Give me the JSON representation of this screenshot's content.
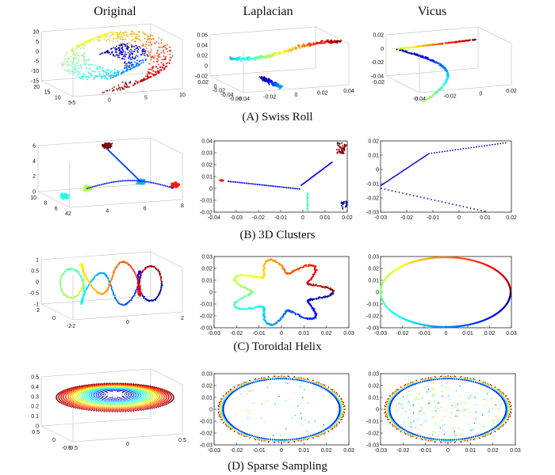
{
  "columns": [
    "Original",
    "Laplacian",
    "Vicus"
  ],
  "rows": [
    {
      "caption": "(A) Swiss Roll",
      "original": {
        "z_ticks": [
          "10",
          "5",
          "0",
          "-5",
          "-10",
          "-15"
        ],
        "x_ticks": [
          "-5",
          "0",
          "5",
          "10"
        ],
        "y_ticks": [
          "20",
          "15",
          "10",
          "5"
        ]
      },
      "laplacian": {
        "z_ticks": [
          "0.06",
          "0.04",
          "0.02",
          "0",
          "-0.02"
        ],
        "x_ticks": [
          "-0.04",
          "-0.02",
          "0",
          "0.02",
          "0.04"
        ],
        "y_ticks": [
          "0.02",
          "0",
          "-0.02",
          "-0.04",
          "-0.06"
        ]
      },
      "vicus": {
        "z_ticks": [
          "0.02",
          "0",
          "-0.02",
          "-0.04"
        ],
        "x_ticks": [
          "-0.04",
          "-0.02",
          "0",
          "0.02"
        ],
        "y_ticks": [
          "-0.02",
          "0"
        ]
      }
    },
    {
      "caption": "(B) 3D Clusters",
      "original": {
        "z_ticks": [
          "6",
          "4",
          "2",
          "0"
        ],
        "x_ticks": [
          "2",
          "4",
          "6",
          "8"
        ],
        "y_ticks": [
          "10",
          "8",
          "6",
          "4"
        ]
      },
      "laplacian": {
        "x_ticks": [
          "-0.04",
          "-0.03",
          "-0.02",
          "-0.01",
          "0",
          "0.01",
          "0.02"
        ],
        "y_ticks": [
          "0.04",
          "0.03",
          "0.02",
          "0.01",
          "0",
          "-0.01",
          "-0.02"
        ]
      },
      "vicus": {
        "x_ticks": [
          "-0.03",
          "-0.02",
          "-0.01",
          "0",
          "0.01",
          "0.02"
        ],
        "y_ticks": [
          "0.02",
          "0.01",
          "0",
          "-0.01",
          "-0.02",
          "-0.03"
        ]
      }
    },
    {
      "caption": "(C) Toroidal Helix",
      "original": {
        "z_ticks": [
          "1",
          "0.5",
          "0",
          "-0.5",
          "-1"
        ],
        "x_ticks": [
          "-2",
          "0",
          "2"
        ],
        "y_ticks": [
          "2",
          "0",
          "-2"
        ]
      },
      "laplacian": {
        "x_ticks": [
          "-0.03",
          "-0.02",
          "-0.01",
          "0",
          "0.01",
          "0.02",
          "0.03"
        ],
        "y_ticks": [
          "0.03",
          "0.02",
          "0.01",
          "0",
          "-0.01",
          "-0.02",
          "-0.03"
        ]
      },
      "vicus": {
        "x_ticks": [
          "-0.03",
          "-0.02",
          "-0.01",
          "0",
          "0.01",
          "0.02",
          "0.03"
        ],
        "y_ticks": [
          "0.03",
          "0.02",
          "0.01",
          "0",
          "-0.01",
          "-0.02",
          "-0.03"
        ]
      }
    },
    {
      "caption": "(D) Sparse Sampling",
      "original": {
        "z_ticks": [
          "0.5",
          "0.4",
          "0.3",
          "0.2",
          "0.1",
          "0"
        ],
        "x_ticks": [
          "-0.5",
          "0",
          "0.5"
        ],
        "y_ticks": [
          "0.5",
          "0",
          "-0.5"
        ]
      },
      "laplacian": {
        "x_ticks": [
          "-0.03",
          "-0.02",
          "-0.01",
          "0",
          "0.01",
          "0.02",
          "0.03"
        ],
        "y_ticks": [
          "0.03",
          "0.02",
          "0.01",
          "0",
          "-0.01",
          "-0.02",
          "-0.03"
        ]
      },
      "vicus": {
        "x_ticks": [
          "-0.03",
          "-0.02",
          "-0.01",
          "0",
          "0.01",
          "0.02",
          "0.03"
        ],
        "y_ticks": [
          "0.03",
          "0.02",
          "0.01",
          "0",
          "-0.01",
          "-0.02",
          "-0.03"
        ]
      }
    }
  ]
}
